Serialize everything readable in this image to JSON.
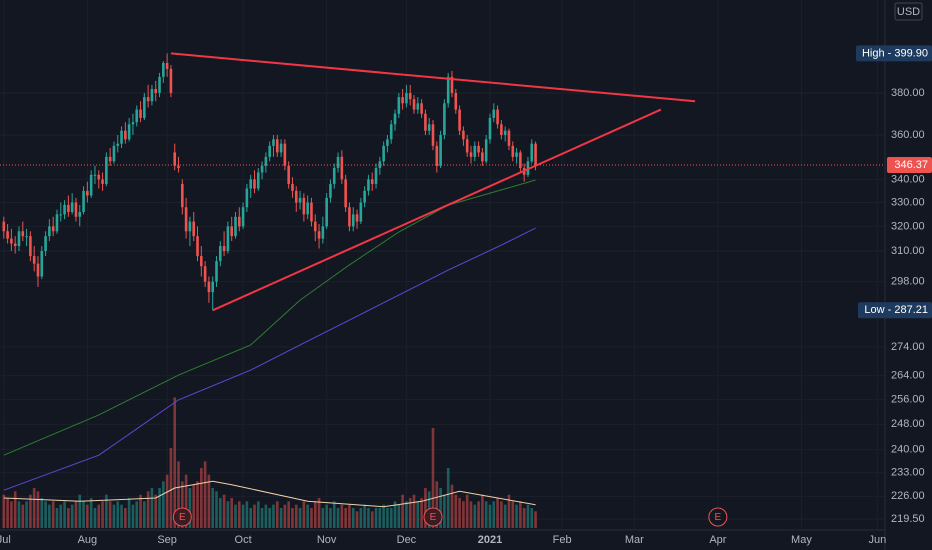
{
  "chart_data": {
    "type": "candlestick",
    "currency": "USD",
    "xlim": [
      -1,
      232
    ],
    "xticks": [
      {
        "value": 0,
        "label": "Jul"
      },
      {
        "value": 22,
        "label": "Aug"
      },
      {
        "value": 43,
        "label": "Sep"
      },
      {
        "value": 63,
        "label": "Oct"
      },
      {
        "value": 85,
        "label": "Nov"
      },
      {
        "value": 106,
        "label": "Dec"
      },
      {
        "value": 128,
        "label": "2021"
      },
      {
        "value": 147,
        "label": "Feb"
      },
      {
        "value": 166,
        "label": "Mar"
      },
      {
        "value": 188,
        "label": "Apr"
      },
      {
        "value": 210,
        "label": "May"
      },
      {
        "value": 230,
        "label": "Jun"
      }
    ],
    "ylim": [
      216.4,
      428.4
    ],
    "log_scale": true,
    "grid": true,
    "yticks": [
      {
        "value": 380,
        "label": "380.00"
      },
      {
        "value": 360,
        "label": "360.00"
      },
      {
        "value": 340,
        "label": "340.00"
      },
      {
        "value": 330,
        "label": "330.00"
      },
      {
        "value": 320,
        "label": "320.00"
      },
      {
        "value": 310,
        "label": "310.00"
      },
      {
        "value": 298,
        "label": "298.00"
      },
      {
        "value": 274,
        "label": "274.00"
      },
      {
        "value": 264,
        "label": "264.00"
      },
      {
        "value": 256,
        "label": "256.00"
      },
      {
        "value": 248,
        "label": "248.00"
      },
      {
        "value": 240,
        "label": "240.00"
      },
      {
        "value": 233,
        "label": "233.00"
      },
      {
        "value": 226,
        "label": "226.00"
      },
      {
        "value": 219.5,
        "label": "219.50"
      }
    ],
    "up_color": "#26a69a",
    "down_color": "#ef5350",
    "ohlc": [
      [
        322,
        324,
        315,
        318
      ],
      [
        318,
        321,
        313,
        315
      ],
      [
        315,
        319,
        310,
        313
      ],
      [
        313,
        316,
        309,
        312
      ],
      [
        312,
        320,
        310,
        318
      ],
      [
        318,
        322,
        314,
        316
      ],
      [
        316,
        319,
        312,
        316
      ],
      [
        316,
        318,
        306,
        308
      ],
      [
        308,
        312,
        302,
        305
      ],
      [
        305,
        308,
        296,
        300
      ],
      [
        300,
        312,
        299,
        310
      ],
      [
        310,
        318,
        308,
        316
      ],
      [
        316,
        323,
        314,
        320
      ],
      [
        320,
        324,
        316,
        318
      ],
      [
        318,
        327,
        317,
        325
      ],
      [
        325,
        330,
        322,
        325
      ],
      [
        325,
        331,
        323,
        329
      ],
      [
        329,
        333,
        324,
        326
      ],
      [
        326,
        334,
        325,
        330
      ],
      [
        330,
        332,
        322,
        324
      ],
      [
        324,
        329,
        320,
        326
      ],
      [
        326,
        337,
        325,
        335
      ],
      [
        335,
        339,
        330,
        333
      ],
      [
        333,
        344,
        332,
        342
      ],
      [
        342,
        346,
        338,
        342
      ],
      [
        342,
        344,
        336,
        340
      ],
      [
        340,
        343,
        335,
        338
      ],
      [
        338,
        352,
        337,
        350
      ],
      [
        350,
        354,
        346,
        348
      ],
      [
        348,
        357,
        347,
        355
      ],
      [
        355,
        360,
        352,
        356
      ],
      [
        356,
        364,
        354,
        362
      ],
      [
        362,
        366,
        356,
        358
      ],
      [
        358,
        368,
        357,
        365
      ],
      [
        365,
        370,
        360,
        366
      ],
      [
        366,
        374,
        364,
        372
      ],
      [
        372,
        376,
        366,
        368
      ],
      [
        368,
        380,
        367,
        378
      ],
      [
        378,
        384,
        373,
        376
      ],
      [
        376,
        384,
        374,
        382
      ],
      [
        382,
        386,
        376,
        380
      ],
      [
        380,
        390,
        378,
        388
      ],
      [
        388,
        396,
        385,
        395
      ],
      [
        395,
        399.9,
        388,
        392
      ],
      [
        392,
        394,
        378,
        380
      ],
      [
        352,
        356,
        344,
        346
      ],
      [
        346,
        350,
        343,
        345
      ],
      [
        338,
        340,
        325,
        328
      ],
      [
        328,
        332,
        315,
        318
      ],
      [
        318,
        324,
        312,
        322
      ],
      [
        322,
        326,
        314,
        316
      ],
      [
        316,
        320,
        306,
        308
      ],
      [
        308,
        312,
        300,
        304
      ],
      [
        304,
        306,
        296,
        298
      ],
      [
        298,
        300,
        290,
        294
      ],
      [
        294,
        300,
        287.21,
        298
      ],
      [
        298,
        308,
        296,
        306
      ],
      [
        306,
        314,
        304,
        312
      ],
      [
        312,
        318,
        308,
        310
      ],
      [
        310,
        322,
        309,
        320
      ],
      [
        320,
        324,
        314,
        316
      ],
      [
        316,
        326,
        315,
        324
      ],
      [
        324,
        328,
        318,
        320
      ],
      [
        320,
        330,
        319,
        328
      ],
      [
        328,
        338,
        326,
        336
      ],
      [
        336,
        342,
        332,
        340
      ],
      [
        340,
        344,
        334,
        336
      ],
      [
        336,
        345,
        335,
        343
      ],
      [
        343,
        348,
        340,
        346
      ],
      [
        346,
        352,
        343,
        350
      ],
      [
        350,
        357,
        348,
        355
      ],
      [
        355,
        360,
        350,
        358
      ],
      [
        358,
        360,
        350,
        352
      ],
      [
        352,
        358,
        350,
        356
      ],
      [
        356,
        358,
        344,
        346
      ],
      [
        346,
        348,
        336,
        338
      ],
      [
        338,
        341,
        332,
        335
      ],
      [
        335,
        337,
        326,
        330
      ],
      [
        330,
        335,
        327,
        332
      ],
      [
        332,
        334,
        322,
        325
      ],
      [
        325,
        333,
        323,
        330
      ],
      [
        330,
        332,
        320,
        322
      ],
      [
        322,
        325,
        314,
        318
      ],
      [
        318,
        321,
        311,
        315
      ],
      [
        315,
        324,
        313,
        320
      ],
      [
        320,
        334,
        319,
        332
      ],
      [
        332,
        340,
        330,
        338
      ],
      [
        338,
        347,
        336,
        345
      ],
      [
        345,
        352,
        343,
        350
      ],
      [
        350,
        353,
        338,
        340
      ],
      [
        340,
        342,
        326,
        328
      ],
      [
        328,
        330,
        318,
        320
      ],
      [
        320,
        328,
        318,
        325
      ],
      [
        325,
        327,
        319,
        322
      ],
      [
        322,
        332,
        321,
        330
      ],
      [
        330,
        337,
        328,
        335
      ],
      [
        335,
        342,
        333,
        340
      ],
      [
        340,
        343,
        335,
        338
      ],
      [
        338,
        347,
        336,
        345
      ],
      [
        345,
        350,
        342,
        348
      ],
      [
        348,
        357,
        346,
        355
      ],
      [
        355,
        360,
        352,
        358
      ],
      [
        358,
        367,
        356,
        365
      ],
      [
        365,
        372,
        362,
        370
      ],
      [
        370,
        380,
        368,
        378
      ],
      [
        378,
        382,
        372,
        375
      ],
      [
        375,
        384,
        373,
        380
      ],
      [
        380,
        384,
        374,
        377
      ],
      [
        377,
        379,
        370,
        372
      ],
      [
        372,
        378,
        370,
        375
      ],
      [
        375,
        377,
        368,
        370
      ],
      [
        370,
        372,
        360,
        362
      ],
      [
        362,
        368,
        360,
        365
      ],
      [
        365,
        367,
        353,
        355
      ],
      [
        355,
        357,
        343,
        346
      ],
      [
        346,
        362,
        345,
        360
      ],
      [
        360,
        377,
        358,
        375
      ],
      [
        375,
        390,
        373,
        388
      ],
      [
        388,
        391,
        378,
        380
      ],
      [
        380,
        382,
        370,
        372
      ],
      [
        372,
        374,
        360,
        362
      ],
      [
        362,
        364,
        355,
        358
      ],
      [
        358,
        360,
        350,
        352
      ],
      [
        352,
        355,
        347,
        350
      ],
      [
        350,
        357,
        348,
        355
      ],
      [
        355,
        357,
        350,
        352
      ],
      [
        352,
        354,
        346,
        348
      ],
      [
        348,
        360,
        347,
        358
      ],
      [
        358,
        370,
        356,
        368
      ],
      [
        368,
        375,
        366,
        372
      ],
      [
        372,
        374,
        363,
        365
      ],
      [
        365,
        367,
        358,
        360
      ],
      [
        360,
        364,
        357,
        362
      ],
      [
        362,
        363,
        353,
        355
      ],
      [
        355,
        357,
        348,
        350
      ],
      [
        350,
        354,
        347,
        352
      ],
      [
        352,
        353,
        343,
        345
      ],
      [
        345,
        347,
        339,
        342
      ],
      [
        342,
        350,
        341,
        348
      ],
      [
        348,
        358,
        347,
        356
      ],
      [
        356,
        357,
        344,
        346.37
      ]
    ],
    "vlim": [
      0,
      30
    ],
    "volume": [
      5,
      4.5,
      4,
      5.5,
      4,
      3.5,
      4,
      5,
      6,
      5.5,
      4.5,
      4,
      3.5,
      4,
      3,
      3.5,
      4,
      3,
      3.5,
      4,
      5,
      4,
      3.5,
      4.5,
      3,
      3.5,
      4,
      5,
      4,
      3.5,
      4,
      3.5,
      3,
      4.5,
      3.5,
      4,
      5,
      4,
      5.5,
      6,
      5,
      6,
      7,
      8,
      12,
      19.6,
      10,
      7,
      8,
      6,
      6.5,
      7,
      9,
      10,
      8,
      6,
      5.5,
      4.5,
      5,
      4,
      4.5,
      3.5,
      4,
      3.5,
      4,
      3,
      3.5,
      4,
      3,
      3.5,
      3,
      3.5,
      4,
      3,
      3.5,
      4,
      3,
      3.5,
      3,
      4,
      3.5,
      3,
      4,
      4.5,
      3,
      3.5,
      3,
      4,
      3,
      3.5,
      3,
      3.5,
      3,
      2.5,
      3,
      3.5,
      3,
      2.5,
      3,
      3,
      3.5,
      3,
      3,
      4,
      3.5,
      5,
      4,
      4.5,
      5,
      4,
      4.5,
      6,
      5.5,
      15,
      7,
      6,
      5,
      9,
      6.5,
      5,
      4.5,
      4,
      5,
      4,
      3.5,
      4,
      5,
      4,
      3.5,
      4,
      4.5,
      4,
      3.5,
      5,
      4,
      3.5,
      4,
      3,
      3.5,
      3,
      2.5
    ],
    "volume_ma": {
      "color": "#f0d2a8",
      "x": [
        0,
        20,
        40,
        45,
        55,
        60,
        80,
        100,
        110,
        120,
        130,
        140
      ],
      "values": [
        4.5,
        4,
        4.5,
        6,
        7,
        6.5,
        4,
        3.2,
        4,
        5.5,
        4.5,
        3.5
      ]
    },
    "moving_averages": [
      {
        "color": "#2e7d32",
        "x": [
          0,
          25,
          46,
          65,
          78,
          91,
          104,
          117,
          131,
          140
        ],
        "values": [
          238.3,
          251.0,
          264.2,
          274.7,
          291.0,
          304.5,
          317.7,
          328.9,
          335.4,
          339.7
        ]
      },
      {
        "color": "#6246d6",
        "x": [
          0,
          25,
          46,
          65,
          78,
          91,
          104,
          117,
          131,
          140
        ],
        "values": [
          227.8,
          238.3,
          255.9,
          265.9,
          274.7,
          283.6,
          292.9,
          302.5,
          312.4,
          319.3
        ]
      }
    ],
    "trendlines": [
      {
        "color": "#f23645",
        "x": [
          44,
          182
        ],
        "values": [
          399.9,
          376
        ]
      },
      {
        "color": "#f23645",
        "x": [
          55,
          173
        ],
        "values": [
          287.21,
          372
        ]
      }
    ],
    "last_price": 346.37,
    "high": 399.9,
    "high_label": "High - 399.90",
    "low": 287.21,
    "low_label": "Low - 287.21",
    "earnings": {
      "label": "E",
      "x": [
        47,
        113,
        188
      ]
    }
  }
}
